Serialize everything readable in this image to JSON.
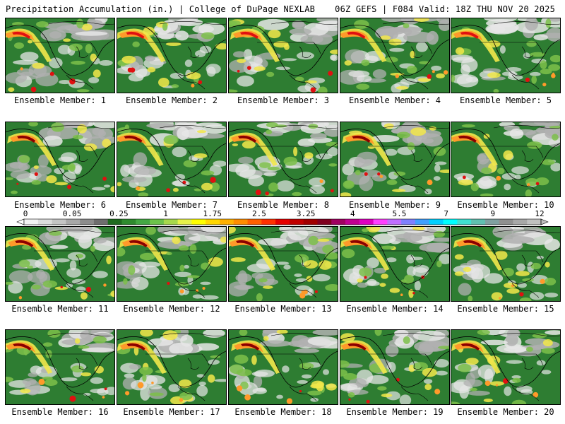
{
  "header": {
    "title": "Precipitation Accumulation (in.) | College of DuPage NEXLAB",
    "model_info": "06Z GEFS | F084 Valid: 18Z THU NOV 20 2025"
  },
  "member_prefix": "Ensemble Member:",
  "panels": [
    {
      "member": "1"
    },
    {
      "member": "2"
    },
    {
      "member": "3"
    },
    {
      "member": "4"
    },
    {
      "member": "5"
    },
    {
      "member": "6"
    },
    {
      "member": "7"
    },
    {
      "member": "8"
    },
    {
      "member": "9"
    },
    {
      "member": "10"
    },
    {
      "member": "11"
    },
    {
      "member": "12"
    },
    {
      "member": "13"
    },
    {
      "member": "14"
    },
    {
      "member": "15"
    },
    {
      "member": "16"
    },
    {
      "member": "17"
    },
    {
      "member": "18"
    },
    {
      "member": "19"
    },
    {
      "member": "20"
    }
  ],
  "legend": {
    "tick_labels": [
      "0",
      "0.05",
      "0.25",
      "1",
      "1.75",
      "2.5",
      "3.25",
      "4",
      "5.5",
      "7",
      "9",
      "12"
    ],
    "colors": [
      "#f2f2f2",
      "#dcdcdc",
      "#c4c4c4",
      "#a8a8a8",
      "#8c8c8c",
      "#6e6e6e",
      "#1f6b1f",
      "#2e8b2e",
      "#44a844",
      "#6cc24a",
      "#a6d84c",
      "#e6f24a",
      "#ffff00",
      "#ffd700",
      "#ffb000",
      "#ff8c00",
      "#ff6000",
      "#ff3000",
      "#e60000",
      "#c00000",
      "#a00000",
      "#800020",
      "#a00060",
      "#c00090",
      "#e000c0",
      "#ff40ff",
      "#c070ff",
      "#8080ff",
      "#40a0ff",
      "#00d0ff",
      "#00ffff",
      "#40e0d0",
      "#60c0b0",
      "#80a0a0",
      "#909090",
      "#a8a8a8",
      "#c0c0c0"
    ]
  },
  "map_colors": {
    "land_green": "#2e7d32",
    "dark_green": "#1b5e20",
    "light_green": "#7cc04a",
    "yellow": "#f2e84a",
    "orange": "#ff9a2a",
    "red": "#e01010",
    "dark_red": "#8b0000",
    "light_gray": "#e6e6e6",
    "gray": "#b0b0b0"
  }
}
